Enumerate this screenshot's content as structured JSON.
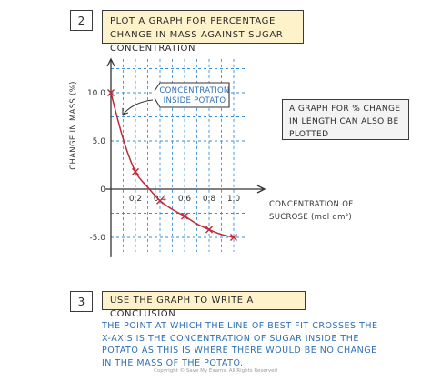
{
  "step1": {
    "number": "2",
    "instruction": "Plot a graph for percentage change in mass against sugar concentration"
  },
  "step2": {
    "number": "3",
    "instruction": "Use the graph to write a conclusion"
  },
  "side_note": "A graph for % change in length can also be plotted",
  "conclusion": "The point at which the line of best fit crosses the x-axis is the concentration of sugar inside the potato as this is where there would be no change in the mass of the potato.",
  "copyright": "Copyright © Save My Exams. All Rights Reserved",
  "chart_data": {
    "type": "scatter",
    "title": "",
    "xlabel": "Concentration of sucrose (mol dm³)",
    "xlabel_lines": [
      "Concentration of",
      "sucrose (mol dm³)"
    ],
    "ylabel": "Change in mass (%)",
    "x_ticks": [
      "0.2",
      "0.4",
      "0.6",
      "0.8",
      "1.0"
    ],
    "x_tick_values": [
      0.2,
      0.4,
      0.6,
      0.8,
      1.0
    ],
    "y_ticks": [
      "10.0",
      "5.0",
      "0",
      "-5.0"
    ],
    "y_tick_values": [
      10,
      5,
      0,
      -5
    ],
    "xlim": [
      0,
      1.1
    ],
    "ylim": [
      -6.5,
      13.5
    ],
    "grid": true,
    "series": [
      {
        "x": [
          0.0,
          0.2,
          0.4,
          0.6,
          0.8,
          1.0
        ],
        "y": [
          10.0,
          1.8,
          -1.2,
          -2.8,
          -4.2,
          -5.0
        ]
      }
    ],
    "curve": {
      "x": [
        0.0,
        0.1,
        0.2,
        0.3,
        0.4,
        0.5,
        0.6,
        0.7,
        0.8,
        0.9,
        1.0
      ],
      "y": [
        10.0,
        5.2,
        1.8,
        0.2,
        -1.2,
        -2.1,
        -2.8,
        -3.6,
        -4.2,
        -4.7,
        -5.0
      ]
    },
    "annotation": {
      "text_lines": [
        "Concentration",
        "inside potato"
      ],
      "x": 0.36
    },
    "colors": {
      "grid": "#3a8fd6",
      "curve": "#c0283a",
      "marker": "#c0283a",
      "axis": "#333333",
      "annotation": "#2f6fb3",
      "banner": "#fdf2c9"
    }
  }
}
